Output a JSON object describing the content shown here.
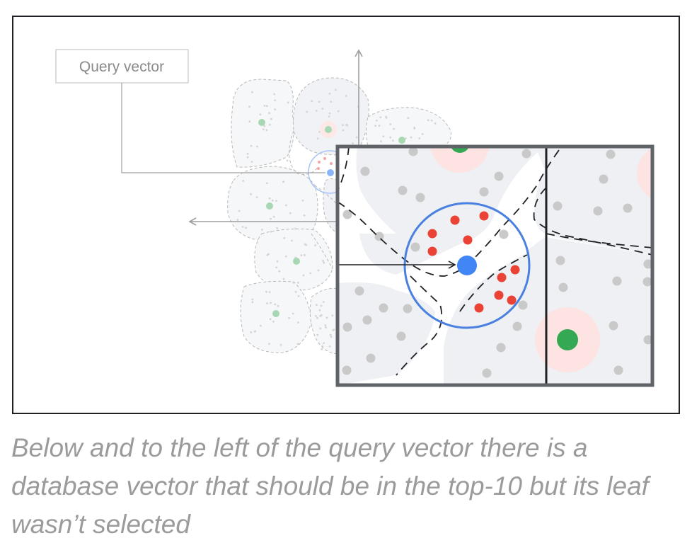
{
  "diagram": {
    "label": "Query vector",
    "caption": "Below and to the left of the query vector there is a database vector that should be in the top-10 but its leaf wasn’t selected",
    "colors": {
      "query": "#4285f4",
      "neighbor": "#ea4335",
      "centroid": "#34a853",
      "database": "#c9c9c9",
      "halo": "#fde4e2",
      "region": "#eef0f3",
      "frame": "#5f6368"
    },
    "icons": [
      "arrow-icon"
    ]
  }
}
